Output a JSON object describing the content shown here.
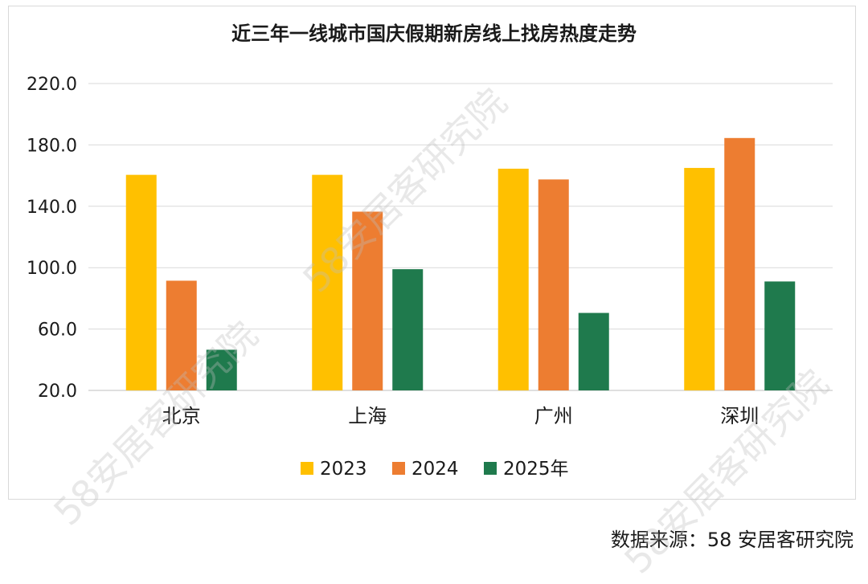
{
  "chart_data": {
    "type": "bar",
    "title": "近三年一线城市国庆假期新房线上找房热度走势",
    "categories": [
      "北京",
      "上海",
      "广州",
      "深圳"
    ],
    "series": [
      {
        "name": "2023",
        "color": "#ffc000",
        "values": [
          160.5,
          160.5,
          164.5,
          165.0
        ]
      },
      {
        "name": "2024",
        "color": "#ed7d31",
        "values": [
          91.5,
          136.5,
          157.5,
          184.5
        ]
      },
      {
        "name": "2025年",
        "color": "#1f7a4d",
        "values": [
          46.5,
          99.0,
          70.5,
          91.0
        ]
      }
    ],
    "ylim": [
      20,
      220
    ],
    "yticks": [
      "20.0",
      "60.0",
      "100.0",
      "140.0",
      "180.0",
      "220.0"
    ],
    "grid": true,
    "legend": "bottom"
  },
  "source": "数据来源：58 安居客研究院",
  "watermark": "58安居客研究院"
}
